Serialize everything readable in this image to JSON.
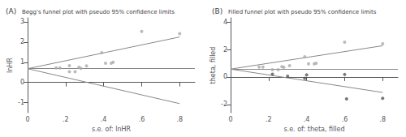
{
  "chart_data": [
    {
      "type": "scatter",
      "title": "Begg's funnel plot with pseudo 95% confidence limits",
      "annotations": [
        "(A)"
      ],
      "xlabel": "s.e. of: lnHR",
      "ylabel": "lnHR",
      "xlim": [
        0,
        0.88
      ],
      "ylim": [
        -1.5,
        3.2
      ],
      "xticks": [
        0,
        {
          "value": 0.2,
          "label": ".2"
        },
        {
          "value": 0.4,
          "label": ".4"
        },
        {
          "value": 0.6,
          "label": ".6"
        },
        {
          "value": 0.8,
          "label": ".8"
        }
      ],
      "yticks": [
        -1,
        0,
        1,
        2,
        3
      ],
      "grid": false,
      "series": [
        {
          "type": "line",
          "color": "#888888",
          "x": [
            0.0,
            0.8
          ],
          "values": [
            0.68,
            2.25
          ]
        },
        {
          "type": "line",
          "color": "#888888",
          "x": [
            0.0,
            0.8
          ],
          "values": [
            0.68,
            -1.05
          ]
        },
        {
          "type": "hline",
          "color": "#888888",
          "values": [
            0.68
          ]
        },
        {
          "type": "scatter",
          "color": "#aaaaaa",
          "x": [
            0.15,
            0.17,
            0.22,
            0.22,
            0.25,
            0.27,
            0.28,
            0.31,
            0.39,
            0.41,
            0.44,
            0.45,
            0.6,
            0.8
          ],
          "values": [
            0.72,
            0.72,
            0.83,
            0.53,
            0.53,
            0.75,
            0.7,
            0.82,
            1.47,
            0.95,
            0.95,
            1.0,
            2.53,
            2.42
          ]
        }
      ]
    },
    {
      "type": "scatter",
      "title": "Filled funnel plot with pseudo 95% confidence limits",
      "annotations": [
        "(B)"
      ],
      "xlabel": "s.e. of: theta, filled",
      "ylabel": "theta, filled",
      "xlim": [
        0,
        0.88
      ],
      "ylim": [
        -2.6,
        4.3
      ],
      "xticks": [
        0,
        {
          "value": 0.2,
          "label": ".2"
        },
        {
          "value": 0.4,
          "label": ".4"
        },
        {
          "value": 0.6,
          "label": ".6"
        },
        {
          "value": 0.8,
          "label": ".8"
        }
      ],
      "yticks": [
        -2,
        0,
        2,
        4
      ],
      "grid": false,
      "series": [
        {
          "type": "line",
          "color": "#888888",
          "x": [
            0.0,
            0.8
          ],
          "values": [
            0.57,
            2.27
          ]
        },
        {
          "type": "line",
          "color": "#888888",
          "x": [
            0.0,
            0.8
          ],
          "values": [
            0.57,
            -1.13
          ]
        },
        {
          "type": "hline",
          "color": "#888888",
          "values": [
            0.57
          ]
        },
        {
          "type": "scatter",
          "color": "#aaaaaa",
          "x": [
            0.15,
            0.17,
            0.22,
            0.25,
            0.27,
            0.28,
            0.31,
            0.39,
            0.41,
            0.44,
            0.45,
            0.6,
            0.8
          ],
          "values": [
            0.72,
            0.72,
            0.53,
            0.53,
            0.75,
            0.7,
            0.82,
            1.47,
            0.95,
            0.95,
            1.0,
            2.53,
            2.42
          ]
        },
        {
          "type": "scatter",
          "color": "#555555",
          "x": [
            0.22,
            0.3,
            0.39,
            0.4,
            0.6,
            0.61,
            0.8
          ],
          "values": [
            0.2,
            0.05,
            -0.1,
            0.15,
            0.18,
            -1.6,
            -1.55
          ]
        }
      ]
    }
  ]
}
